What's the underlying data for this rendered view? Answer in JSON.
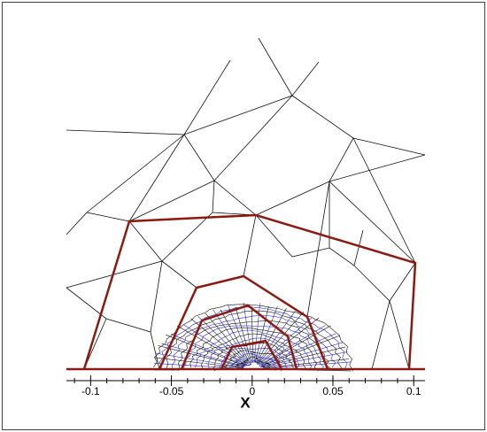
{
  "chart_data": {
    "type": "mesh",
    "xlabel": "X",
    "xlim": [
      -0.115,
      0.107
    ],
    "xticks": [
      -0.1,
      -0.05,
      0,
      0.05,
      0.1
    ],
    "xminorticks": [
      -0.11,
      -0.09,
      -0.08,
      -0.07,
      -0.06,
      -0.04,
      -0.03,
      -0.02,
      -0.01,
      0.01,
      0.02,
      0.03,
      0.04,
      0.06,
      0.07,
      0.08,
      0.09
    ]
  }
}
